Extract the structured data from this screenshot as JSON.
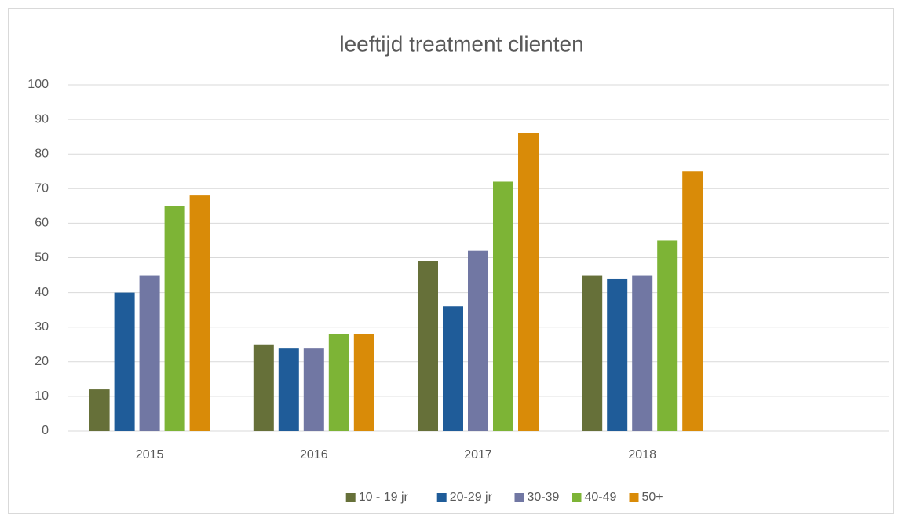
{
  "chart_data": {
    "type": "bar",
    "title": "leeftijd treatment clienten",
    "categories": [
      "2015",
      "2016",
      "2017",
      "2018",
      null
    ],
    "series": [
      {
        "name": "10 - 19 jr",
        "color": "#667039",
        "values": [
          12,
          25,
          49,
          45,
          null
        ]
      },
      {
        "name": "20-29 jr",
        "color": "#1f5c99",
        "values": [
          40,
          24,
          36,
          44,
          null
        ]
      },
      {
        "name": "30-39",
        "color": "#7177a3",
        "values": [
          45,
          24,
          52,
          45,
          null
        ]
      },
      {
        "name": "40-49",
        "color": "#7db436",
        "values": [
          65,
          28,
          72,
          55,
          null
        ]
      },
      {
        "name": "50+",
        "color": "#d98b08",
        "values": [
          68,
          28,
          86,
          75,
          null
        ]
      }
    ],
    "ylim": [
      0,
      100
    ],
    "yticks": [
      0,
      10,
      20,
      30,
      40,
      50,
      60,
      70,
      80,
      90,
      100
    ],
    "grid": true,
    "legend": "bottom"
  }
}
